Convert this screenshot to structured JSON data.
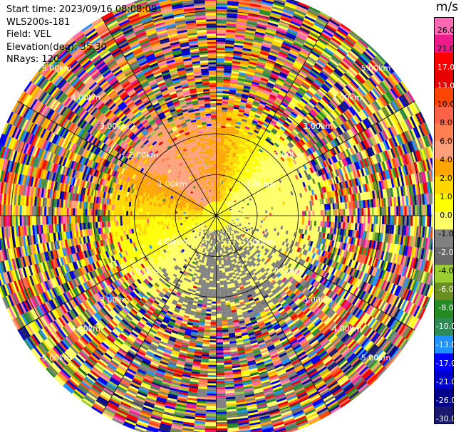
{
  "header": {
    "start_time": "Start time: 2023/09/16 08:08:08",
    "instrument": "WLS200s-181",
    "field": "Field: VEL",
    "elevation": "Elevation(deg): 35.30",
    "nrays": "NRays: 120"
  },
  "colorbar": {
    "unit": "m/s",
    "ticks": [
      "26.0",
      "21.0",
      "17.0",
      "13.0",
      "10.0",
      "8.0",
      "6.0",
      "4.0",
      "2.0",
      "1.0",
      "0.0",
      "-1.0",
      "-2.0",
      "-4.0",
      "-6.0",
      "-8.0",
      "-10.0",
      "-13.0",
      "-17.0",
      "-21.0",
      "-26.0",
      "-30.0"
    ],
    "colors": [
      "#ff69b4",
      "#ee1a8c",
      "#ff0000",
      "#e60000",
      "#ff4500",
      "#ff6347",
      "#ff7f50",
      "#ffa07a",
      "#ffa500",
      "#ffd700",
      "#ffff00",
      "#ffff66",
      "#808080",
      "#696969",
      "#9acd32",
      "#6b8e23",
      "#228b22",
      "#2e8b57",
      "#1e90ff",
      "#0000ff",
      "#0000cd",
      "#00008b",
      "#191970"
    ]
  },
  "chart_data": {
    "type": "heatmap",
    "projection": "polar-ppi",
    "nrays": 120,
    "range_rings_km": [
      1.0,
      2.0,
      3.0,
      4.0,
      5.0
    ],
    "ring_labels": [
      "1.00km",
      "2.00km",
      "3.00km",
      "4.00km",
      "5.00km"
    ],
    "spokes_deg": [
      0,
      30,
      60,
      90,
      120,
      150,
      180,
      210,
      240,
      270,
      300,
      330
    ],
    "max_range_km": 5.6,
    "value_range": [
      -30.0,
      26.0
    ],
    "grid": true,
    "legend": "right",
    "dominant_pattern": [
      {
        "sector": "north-west",
        "velocity_ms": 8.0
      },
      {
        "sector": "north",
        "velocity_ms": 6.0
      },
      {
        "sector": "west",
        "velocity_ms": 2.0
      },
      {
        "sector": "north-east",
        "velocity_ms": -2.0
      },
      {
        "sector": "east",
        "velocity_ms": -2.0
      },
      {
        "sector": "south",
        "velocity_ms": -4.0
      },
      {
        "sector": "south-west",
        "velocity_ms": -2.0
      },
      {
        "sector": "center",
        "velocity_ms": 0.0
      }
    ]
  }
}
